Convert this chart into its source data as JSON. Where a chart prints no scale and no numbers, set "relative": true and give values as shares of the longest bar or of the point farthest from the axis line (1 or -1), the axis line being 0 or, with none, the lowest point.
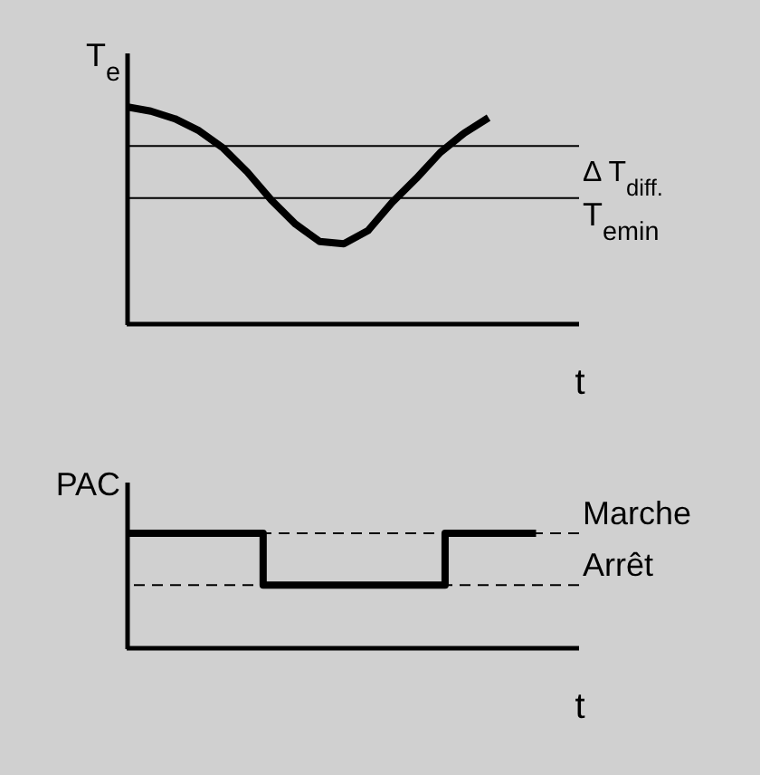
{
  "chart_data": [
    {
      "type": "line",
      "relative": true,
      "ylabel": "T$_{e}$",
      "xlabel": "t",
      "color": "#000000",
      "categories": [
        null,
        null,
        null,
        null,
        null,
        null,
        null,
        null,
        null,
        null,
        null,
        null,
        null,
        null,
        null,
        null
      ],
      "values": [
        1.0,
        0.98,
        0.945,
        0.89,
        0.81,
        0.7,
        0.57,
        0.46,
        0.38,
        0.37,
        0.43,
        0.56,
        0.67,
        0.79,
        0.88,
        0.95
      ],
      "ref_lines": [
        {
          "axis": "y",
          "value": 0.82,
          "label": null,
          "color": "#000000",
          "line_style": "solid"
        },
        {
          "axis": "y",
          "value": 0.58,
          "label": "T$_{emin}$",
          "color": "#000000",
          "line_style": "solid"
        }
      ],
      "annotations": [
        "Δ T$_{diff.}$"
      ]
    },
    {
      "type": "step",
      "relative": true,
      "ylabel": "PAC",
      "xlabel": "t",
      "color": "#000000",
      "categories": [
        null,
        null,
        null,
        null,
        null,
        null,
        null,
        null,
        null,
        null
      ],
      "values": [
        1,
        1,
        1,
        0.55,
        0.55,
        0.55,
        0.55,
        1,
        1,
        1
      ],
      "ref_lines": [
        {
          "axis": "y",
          "value": 1,
          "label": "Marche",
          "color": "#000000",
          "line_style": "dashed"
        },
        {
          "axis": "y",
          "value": 0.55,
          "label": "Arrêt",
          "color": "#000000",
          "line_style": "dashed"
        }
      ]
    }
  ]
}
